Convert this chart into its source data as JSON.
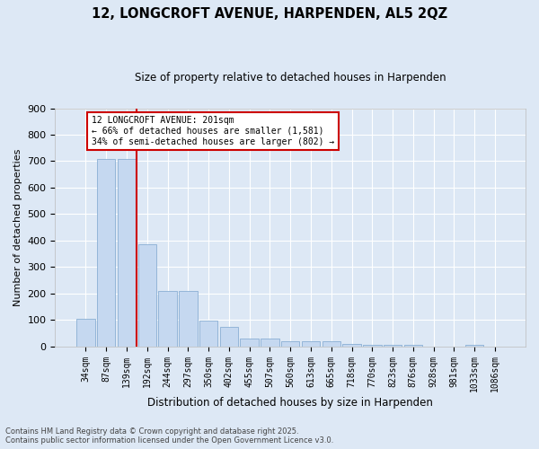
{
  "title_line1": "12, LONGCROFT AVENUE, HARPENDEN, AL5 2QZ",
  "title_line2": "Size of property relative to detached houses in Harpenden",
  "xlabel": "Distribution of detached houses by size in Harpenden",
  "ylabel": "Number of detached properties",
  "categories": [
    "34sqm",
    "87sqm",
    "139sqm",
    "192sqm",
    "244sqm",
    "297sqm",
    "350sqm",
    "402sqm",
    "455sqm",
    "507sqm",
    "560sqm",
    "613sqm",
    "665sqm",
    "718sqm",
    "770sqm",
    "823sqm",
    "876sqm",
    "928sqm",
    "981sqm",
    "1033sqm",
    "1086sqm"
  ],
  "values": [
    103,
    710,
    710,
    385,
    208,
    208,
    97,
    73,
    30,
    30,
    20,
    18,
    18,
    8,
    5,
    5,
    5,
    0,
    0,
    5,
    0
  ],
  "bar_color": "#c5d8f0",
  "bar_edge_color": "#8aafd4",
  "vline_color": "#cc0000",
  "annotation_title": "12 LONGCROFT AVENUE: 201sqm",
  "annotation_line2": "← 66% of detached houses are smaller (1,581)",
  "annotation_line3": "34% of semi-detached houses are larger (802) →",
  "annotation_box_color": "#cc0000",
  "annotation_bg": "#ffffff",
  "ylim": [
    0,
    900
  ],
  "yticks": [
    0,
    100,
    200,
    300,
    400,
    500,
    600,
    700,
    800,
    900
  ],
  "bg_color": "#dde8f5",
  "grid_color": "#ffffff",
  "footer_line1": "Contains HM Land Registry data © Crown copyright and database right 2025.",
  "footer_line2": "Contains public sector information licensed under the Open Government Licence v3.0."
}
